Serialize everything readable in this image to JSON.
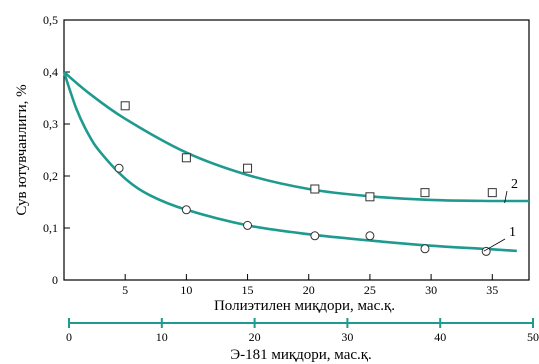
{
  "chart_data": {
    "type": "line",
    "xlabel": "Полиэтилен миқдори, мас.қ.",
    "ylabel": "Сув ютувчанлиги, %",
    "x2label": "Э-181 миқдори, мас.қ.",
    "xlim": [
      0,
      38
    ],
    "ylim": [
      0,
      0.5
    ],
    "x2lim": [
      0,
      50
    ],
    "xticks": [
      5,
      10,
      15,
      20,
      25,
      30,
      35
    ],
    "yticks": [
      0,
      0.1,
      0.2,
      0.3,
      0.4,
      0.5
    ],
    "yticklabels": [
      "0",
      "0,1",
      "0,2",
      "0,3",
      "0,4",
      "0,5"
    ],
    "x2ticks": [
      0,
      10,
      20,
      30,
      40,
      50
    ],
    "series": [
      {
        "name": "2",
        "marker": "square",
        "points_x": [
          5,
          10,
          15,
          20.5,
          25,
          29.5,
          35
        ],
        "points_y": [
          0.335,
          0.235,
          0.215,
          0.175,
          0.16,
          0.168,
          0.168
        ],
        "curve_x": [
          0,
          2,
          5,
          10,
          15,
          20,
          25,
          30,
          35,
          38
        ],
        "curve_y": [
          0.4,
          0.36,
          0.31,
          0.245,
          0.202,
          0.175,
          0.161,
          0.154,
          0.152,
          0.152
        ]
      },
      {
        "name": "1",
        "marker": "circle",
        "points_x": [
          4.5,
          10,
          15,
          20.5,
          25,
          29.5,
          34.5
        ],
        "points_y": [
          0.215,
          0.135,
          0.105,
          0.085,
          0.085,
          0.06,
          0.055
        ],
        "curve_x": [
          0,
          1,
          2,
          3,
          5,
          7,
          10,
          15,
          20,
          25,
          30,
          35,
          37
        ],
        "curve_y": [
          0.4,
          0.33,
          0.28,
          0.245,
          0.195,
          0.163,
          0.135,
          0.105,
          0.088,
          0.076,
          0.066,
          0.059,
          0.056
        ]
      }
    ],
    "colors": {
      "curve": "#1f9a8f",
      "axis": "#000000"
    }
  }
}
